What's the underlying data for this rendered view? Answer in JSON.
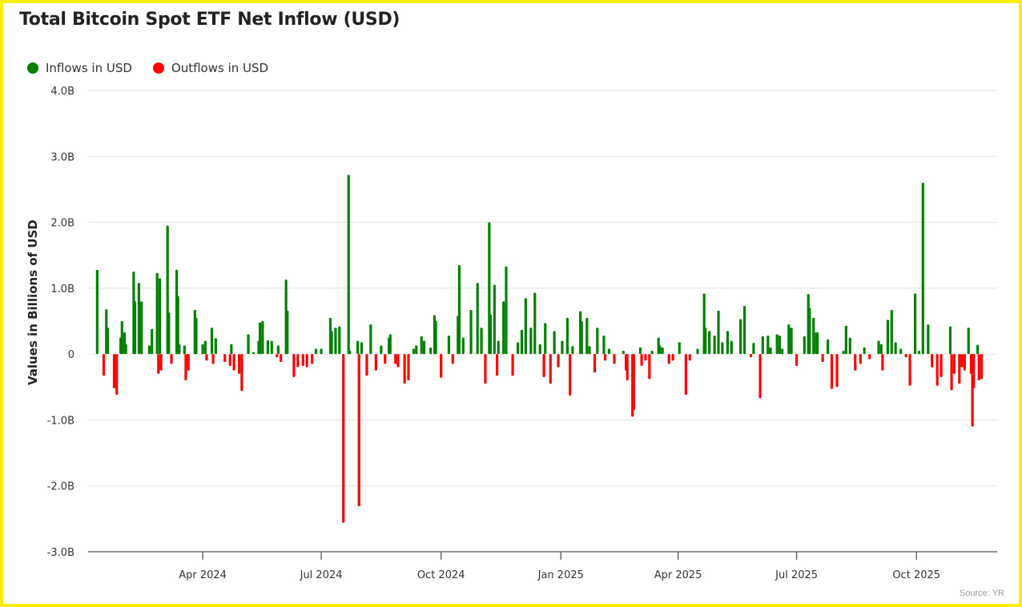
{
  "chart_data": {
    "type": "bar",
    "title": "Total Bitcoin Spot ETF Net Inflow (USD)",
    "ylabel": "Values in Billions of USD",
    "xlabel": "",
    "ylim": [
      -3.0,
      4.0
    ],
    "xlim": [
      "2024-01-04",
      "2025-12-02"
    ],
    "grid": true,
    "legend_position": "top-left",
    "legend": [
      {
        "name": "Inflows in USD",
        "color": "#008000"
      },
      {
        "name": "Outflows in USD",
        "color": "#ff0000"
      }
    ],
    "y_ticks": [
      {
        "value": 4,
        "label": "4.0B"
      },
      {
        "value": 3,
        "label": "3.0B"
      },
      {
        "value": 2,
        "label": "2.0B"
      },
      {
        "value": 1,
        "label": "1.0B"
      },
      {
        "value": 0,
        "label": "0"
      },
      {
        "value": -1,
        "label": "-1.0B"
      },
      {
        "value": -2,
        "label": "-2.0B"
      },
      {
        "value": -3,
        "label": "-3.0B"
      }
    ],
    "x_ticks": [
      {
        "date": "2024-04-01",
        "label": "Apr 2024"
      },
      {
        "date": "2024-07-01",
        "label": "Jul 2024"
      },
      {
        "date": "2024-10-01",
        "label": "Oct 2024"
      },
      {
        "date": "2025-01-01",
        "label": "Jan 2025"
      },
      {
        "date": "2025-04-01",
        "label": "Apr 2025"
      },
      {
        "date": "2025-07-01",
        "label": "Jul 2025"
      },
      {
        "date": "2025-10-01",
        "label": "Oct 2025"
      }
    ],
    "series": [
      {
        "points": [
          [
            "2024-01-11",
            1.28
          ],
          [
            "2024-01-16",
            -0.33
          ],
          [
            "2024-01-18",
            0.68
          ],
          [
            "2024-01-19",
            0.4
          ],
          [
            "2024-01-24",
            -0.52
          ],
          [
            "2024-01-26",
            -0.62
          ],
          [
            "2024-01-29",
            0.25
          ],
          [
            "2024-01-30",
            0.5
          ],
          [
            "2024-02-01",
            0.33
          ],
          [
            "2024-02-02",
            0.15
          ],
          [
            "2024-02-08",
            1.25
          ],
          [
            "2024-02-09",
            0.8
          ],
          [
            "2024-02-12",
            1.08
          ],
          [
            "2024-02-14",
            0.8
          ],
          [
            "2024-02-20",
            0.13
          ],
          [
            "2024-02-22",
            0.38
          ],
          [
            "2024-02-26",
            1.23
          ],
          [
            "2024-02-27",
            -0.3
          ],
          [
            "2024-02-28",
            1.15
          ],
          [
            "2024-02-29",
            -0.25
          ],
          [
            "2024-03-05",
            1.95
          ],
          [
            "2024-03-06",
            0.63
          ],
          [
            "2024-03-08",
            -0.15
          ],
          [
            "2024-03-12",
            1.28
          ],
          [
            "2024-03-13",
            0.88
          ],
          [
            "2024-03-14",
            0.15
          ],
          [
            "2024-03-18",
            0.13
          ],
          [
            "2024-03-19",
            -0.4
          ],
          [
            "2024-03-21",
            -0.25
          ],
          [
            "2024-03-26",
            0.67
          ],
          [
            "2024-03-27",
            0.55
          ],
          [
            "2024-04-01",
            0.15
          ],
          [
            "2024-04-03",
            0.2
          ],
          [
            "2024-04-04",
            -0.1
          ],
          [
            "2024-04-08",
            0.4
          ],
          [
            "2024-04-09",
            -0.15
          ],
          [
            "2024-04-11",
            0.24
          ],
          [
            "2024-04-18",
            -0.12
          ],
          [
            "2024-04-22",
            -0.18
          ],
          [
            "2024-04-23",
            0.15
          ],
          [
            "2024-04-25",
            -0.25
          ],
          [
            "2024-04-29",
            -0.3
          ],
          [
            "2024-05-01",
            -0.56
          ],
          [
            "2024-05-06",
            0.3
          ],
          [
            "2024-05-10",
            0.03
          ],
          [
            "2024-05-14",
            0.2
          ],
          [
            "2024-05-15",
            0.48
          ],
          [
            "2024-05-17",
            0.5
          ],
          [
            "2024-05-21",
            0.21
          ],
          [
            "2024-05-24",
            0.2
          ],
          [
            "2024-05-28",
            -0.05
          ],
          [
            "2024-05-29",
            0.13
          ],
          [
            "2024-05-31",
            -0.12
          ],
          [
            "2024-06-04",
            1.13
          ],
          [
            "2024-06-05",
            0.66
          ],
          [
            "2024-06-10",
            -0.35
          ],
          [
            "2024-06-13",
            -0.2
          ],
          [
            "2024-06-17",
            -0.18
          ],
          [
            "2024-06-20",
            -0.2
          ],
          [
            "2024-06-24",
            -0.15
          ],
          [
            "2024-06-27",
            0.08
          ],
          [
            "2024-07-01",
            0.08
          ],
          [
            "2024-07-08",
            0.55
          ],
          [
            "2024-07-09",
            0.35
          ],
          [
            "2024-07-12",
            0.4
          ],
          [
            "2024-07-15",
            0.42
          ],
          [
            "2024-07-18",
            -2.56
          ],
          [
            "2024-07-22",
            2.72
          ],
          [
            "2024-07-23",
            0.05
          ],
          [
            "2024-07-29",
            0.2
          ],
          [
            "2024-07-30",
            -2.31
          ],
          [
            "2024-08-01",
            0.18
          ],
          [
            "2024-08-05",
            -0.33
          ],
          [
            "2024-08-08",
            0.45
          ],
          [
            "2024-08-12",
            -0.25
          ],
          [
            "2024-08-16",
            0.13
          ],
          [
            "2024-08-19",
            -0.15
          ],
          [
            "2024-08-22",
            0.25
          ],
          [
            "2024-08-23",
            0.3
          ],
          [
            "2024-08-27",
            -0.15
          ],
          [
            "2024-08-29",
            -0.2
          ],
          [
            "2024-09-03",
            -0.45
          ],
          [
            "2024-09-06",
            -0.4
          ],
          [
            "2024-09-10",
            0.08
          ],
          [
            "2024-09-12",
            0.13
          ],
          [
            "2024-09-16",
            0.27
          ],
          [
            "2024-09-18",
            0.2
          ],
          [
            "2024-09-23",
            0.1
          ],
          [
            "2024-09-26",
            0.59
          ],
          [
            "2024-09-27",
            0.5
          ],
          [
            "2024-10-01",
            -0.36
          ],
          [
            "2024-10-07",
            0.28
          ],
          [
            "2024-10-10",
            -0.15
          ],
          [
            "2024-10-14",
            0.58
          ],
          [
            "2024-10-15",
            1.35
          ],
          [
            "2024-10-18",
            0.25
          ],
          [
            "2024-10-24",
            0.67
          ],
          [
            "2024-10-29",
            1.08
          ],
          [
            "2024-11-01",
            0.4
          ],
          [
            "2024-11-04",
            -0.45
          ],
          [
            "2024-11-07",
            2.0
          ],
          [
            "2024-11-08",
            0.6
          ],
          [
            "2024-11-11",
            1.05
          ],
          [
            "2024-11-13",
            -0.33
          ],
          [
            "2024-11-14",
            0.2
          ],
          [
            "2024-11-18",
            0.8
          ],
          [
            "2024-11-20",
            1.33
          ],
          [
            "2024-11-25",
            -0.33
          ],
          [
            "2024-11-29",
            0.18
          ],
          [
            "2024-12-02",
            0.37
          ],
          [
            "2024-12-05",
            0.85
          ],
          [
            "2024-12-09",
            0.4
          ],
          [
            "2024-12-12",
            0.93
          ],
          [
            "2024-12-16",
            0.15
          ],
          [
            "2024-12-19",
            -0.35
          ],
          [
            "2024-12-20",
            0.47
          ],
          [
            "2024-12-24",
            -0.45
          ],
          [
            "2024-12-27",
            0.35
          ],
          [
            "2024-12-30",
            -0.2
          ],
          [
            "2025-01-02",
            0.2
          ],
          [
            "2025-01-06",
            0.55
          ],
          [
            "2025-01-08",
            -0.63
          ],
          [
            "2025-01-10",
            0.12
          ],
          [
            "2025-01-16",
            0.65
          ],
          [
            "2025-01-17",
            0.5
          ],
          [
            "2025-01-21",
            0.55
          ],
          [
            "2025-01-23",
            0.12
          ],
          [
            "2025-01-27",
            -0.28
          ],
          [
            "2025-01-29",
            0.4
          ],
          [
            "2025-02-03",
            0.28
          ],
          [
            "2025-02-04",
            -0.1
          ],
          [
            "2025-02-07",
            0.08
          ],
          [
            "2025-02-11",
            -0.15
          ],
          [
            "2025-02-18",
            0.05
          ],
          [
            "2025-02-20",
            -0.25
          ],
          [
            "2025-02-21",
            -0.4
          ],
          [
            "2025-02-25",
            -0.95
          ],
          [
            "2025-02-26",
            -0.85
          ],
          [
            "2025-03-03",
            0.1
          ],
          [
            "2025-03-04",
            -0.18
          ],
          [
            "2025-03-07",
            -0.1
          ],
          [
            "2025-03-10",
            -0.38
          ],
          [
            "2025-03-12",
            0.05
          ],
          [
            "2025-03-17",
            0.25
          ],
          [
            "2025-03-18",
            0.13
          ],
          [
            "2025-03-20",
            0.1
          ],
          [
            "2025-03-25",
            -0.15
          ],
          [
            "2025-03-28",
            -0.1
          ],
          [
            "2025-04-02",
            0.18
          ],
          [
            "2025-04-07",
            -0.62
          ],
          [
            "2025-04-10",
            -0.1
          ],
          [
            "2025-04-16",
            0.08
          ],
          [
            "2025-04-21",
            0.92
          ],
          [
            "2025-04-22",
            0.4
          ],
          [
            "2025-04-25",
            0.35
          ],
          [
            "2025-04-29",
            0.28
          ],
          [
            "2025-05-02",
            0.66
          ],
          [
            "2025-05-05",
            0.18
          ],
          [
            "2025-05-09",
            0.35
          ],
          [
            "2025-05-12",
            0.2
          ],
          [
            "2025-05-19",
            0.53
          ],
          [
            "2025-05-22",
            0.73
          ],
          [
            "2025-05-27",
            -0.05
          ],
          [
            "2025-05-29",
            0.17
          ],
          [
            "2025-06-03",
            -0.67
          ],
          [
            "2025-06-05",
            0.27
          ],
          [
            "2025-06-09",
            0.28
          ],
          [
            "2025-06-11",
            0.1
          ],
          [
            "2025-06-16",
            0.3
          ],
          [
            "2025-06-18",
            0.28
          ],
          [
            "2025-06-20",
            0.08
          ],
          [
            "2025-06-25",
            0.45
          ],
          [
            "2025-06-27",
            0.4
          ],
          [
            "2025-07-01",
            -0.18
          ],
          [
            "2025-07-07",
            0.27
          ],
          [
            "2025-07-10",
            0.91
          ],
          [
            "2025-07-11",
            0.7
          ],
          [
            "2025-07-14",
            0.55
          ],
          [
            "2025-07-16",
            0.33
          ],
          [
            "2025-07-17",
            0.33
          ],
          [
            "2025-07-21",
            -0.12
          ],
          [
            "2025-07-25",
            0.22
          ],
          [
            "2025-07-28",
            -0.53
          ],
          [
            "2025-08-01",
            -0.5
          ],
          [
            "2025-08-06",
            0.05
          ],
          [
            "2025-08-08",
            0.43
          ],
          [
            "2025-08-11",
            0.25
          ],
          [
            "2025-08-15",
            -0.25
          ],
          [
            "2025-08-19",
            -0.15
          ],
          [
            "2025-08-22",
            0.1
          ],
          [
            "2025-08-26",
            -0.08
          ],
          [
            "2025-09-02",
            0.2
          ],
          [
            "2025-09-04",
            0.15
          ],
          [
            "2025-09-05",
            -0.25
          ],
          [
            "2025-09-09",
            0.52
          ],
          [
            "2025-09-12",
            0.67
          ],
          [
            "2025-09-15",
            0.18
          ],
          [
            "2025-09-19",
            0.08
          ],
          [
            "2025-09-23",
            -0.05
          ],
          [
            "2025-09-26",
            -0.48
          ],
          [
            "2025-09-30",
            0.92
          ],
          [
            "2025-10-03",
            0.05
          ],
          [
            "2025-10-06",
            2.6
          ],
          [
            "2025-10-10",
            0.45
          ],
          [
            "2025-10-13",
            -0.2
          ],
          [
            "2025-10-17",
            -0.48
          ],
          [
            "2025-10-20",
            -0.35
          ],
          [
            "2025-10-27",
            0.42
          ],
          [
            "2025-10-28",
            -0.55
          ],
          [
            "2025-10-30",
            -0.3
          ],
          [
            "2025-11-03",
            -0.45
          ],
          [
            "2025-11-05",
            -0.2
          ],
          [
            "2025-11-07",
            -0.25
          ],
          [
            "2025-11-10",
            0.4
          ],
          [
            "2025-11-12",
            -0.3
          ],
          [
            "2025-11-13",
            -1.1
          ],
          [
            "2025-11-14",
            -0.52
          ],
          [
            "2025-11-17",
            0.14
          ],
          [
            "2025-11-18",
            -0.4
          ],
          [
            "2025-11-20",
            -0.38
          ]
        ]
      }
    ],
    "source": "Source: YR"
  },
  "colors": {
    "border": "#ffee00",
    "inflow": "#008000",
    "outflow": "#ff0000"
  }
}
